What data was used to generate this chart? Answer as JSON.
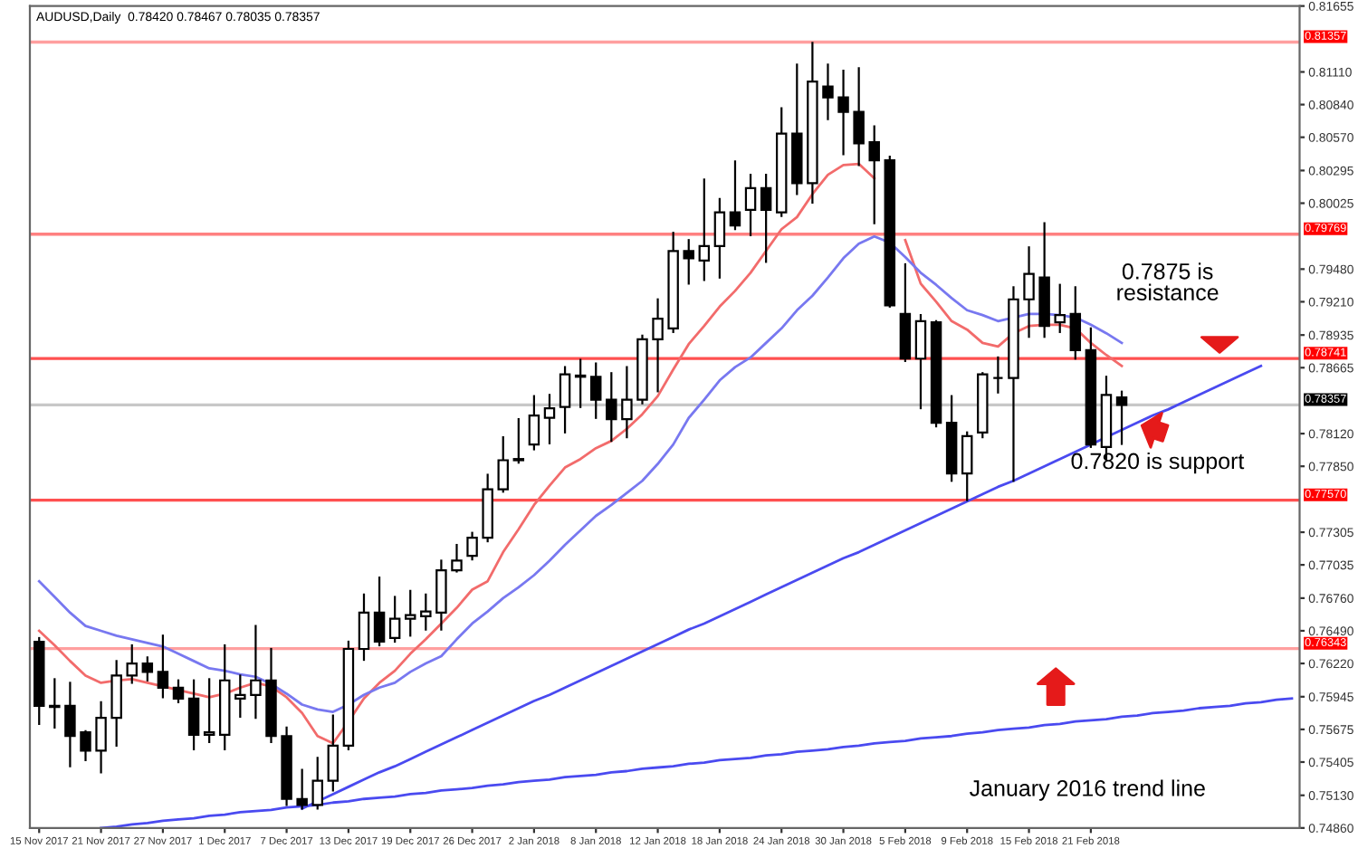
{
  "chart_data": {
    "type": "candlestick",
    "title": "AUDUSD,Daily  0.78420 0.78467 0.78035 0.78357",
    "categories": [
      "15 Nov 2017",
      null,
      null,
      null,
      "21 Nov 2017",
      null,
      null,
      null,
      "27 Nov 2017",
      null,
      null,
      null,
      "1 Dec 2017",
      null,
      null,
      null,
      "7 Dec 2017",
      null,
      null,
      null,
      "13 Dec 2017",
      null,
      null,
      null,
      "19 Dec 2017",
      null,
      null,
      null,
      "26 Dec 2017",
      null,
      null,
      null,
      "2 Jan 2018",
      null,
      null,
      null,
      "8 Jan 2018",
      null,
      null,
      null,
      "12 Jan 2018",
      null,
      null,
      null,
      "18 Jan 2018",
      null,
      null,
      null,
      "24 Jan 2018",
      null,
      null,
      null,
      "30 Jan 2018",
      null,
      null,
      null,
      "5 Feb 2018",
      null,
      null,
      null,
      "9 Feb 2018",
      null,
      null,
      null,
      "15 Feb 2018",
      null,
      null,
      null,
      "21 Feb 2018",
      null,
      null,
      null,
      null,
      null,
      null,
      null,
      null,
      null,
      null,
      null,
      null,
      null
    ],
    "color": "#000000",
    "ohlc": [
      [
        0.764,
        0.7643,
        0.7572,
        0.7587
      ],
      [
        0.7587,
        0.7609,
        0.7569,
        0.7586
      ],
      [
        0.7587,
        0.7606,
        0.7537,
        0.7562
      ],
      [
        0.7565,
        0.7566,
        0.7542,
        0.755
      ],
      [
        0.755,
        0.759,
        0.7532,
        0.7577
      ],
      [
        0.7577,
        0.7624,
        0.7554,
        0.7612
      ],
      [
        0.7612,
        0.7637,
        0.7606,
        0.7622
      ],
      [
        0.7622,
        0.7627,
        0.7608,
        0.7615
      ],
      [
        0.7615,
        0.7645,
        0.7594,
        0.7602
      ],
      [
        0.7602,
        0.7608,
        0.759,
        0.7593
      ],
      [
        0.7593,
        0.7608,
        0.7551,
        0.7563
      ],
      [
        0.7563,
        0.7609,
        0.7557,
        0.7565
      ],
      [
        0.7563,
        0.7637,
        0.7551,
        0.7608
      ],
      [
        0.7593,
        0.7612,
        0.7578,
        0.7596
      ],
      [
        0.7596,
        0.7653,
        0.7577,
        0.7608
      ],
      [
        0.7608,
        0.7634,
        0.7557,
        0.7562
      ],
      [
        0.7562,
        0.7569,
        0.7505,
        0.751
      ],
      [
        0.751,
        0.7534,
        0.7502,
        0.7505
      ],
      [
        0.7505,
        0.7544,
        0.7502,
        0.7525
      ],
      [
        0.7525,
        0.7579,
        0.7517,
        0.7554
      ],
      [
        0.7554,
        0.764,
        0.7551,
        0.7634
      ],
      [
        0.7634,
        0.7679,
        0.7625,
        0.7664
      ],
      [
        0.7664,
        0.7693,
        0.7637,
        0.764
      ],
      [
        0.7643,
        0.7677,
        0.764,
        0.7659
      ],
      [
        0.7659,
        0.7682,
        0.7645,
        0.7662
      ],
      [
        0.7661,
        0.7679,
        0.765,
        0.7665
      ],
      [
        0.7664,
        0.7707,
        0.765,
        0.7699
      ],
      [
        0.7699,
        0.772,
        0.7698,
        0.7707
      ],
      [
        0.7711,
        0.773,
        0.7708,
        0.7726
      ],
      [
        0.7726,
        0.7778,
        0.7723,
        0.7766
      ],
      [
        0.7766,
        0.7809,
        0.7764,
        0.779
      ],
      [
        0.779,
        0.7824,
        0.7788,
        0.7791
      ],
      [
        0.7803,
        0.7843,
        0.7799,
        0.7827
      ],
      [
        0.7825,
        0.7844,
        0.7804,
        0.7833
      ],
      [
        0.7834,
        0.7867,
        0.7813,
        0.7861
      ],
      [
        0.786,
        0.7873,
        0.7834,
        0.7859
      ],
      [
        0.7859,
        0.787,
        0.7825,
        0.784
      ],
      [
        0.784,
        0.7862,
        0.7806,
        0.7824
      ],
      [
        0.7824,
        0.7867,
        0.7809,
        0.784
      ],
      [
        0.784,
        0.7893,
        0.7837,
        0.789
      ],
      [
        0.789,
        0.7923,
        0.7847,
        0.7907
      ],
      [
        0.7899,
        0.7978,
        0.7896,
        0.7963
      ],
      [
        0.7963,
        0.7972,
        0.7936,
        0.7957
      ],
      [
        0.7955,
        0.8022,
        0.7939,
        0.7967
      ],
      [
        0.7967,
        0.8006,
        0.7941,
        0.7995
      ],
      [
        0.7995,
        0.8037,
        0.7981,
        0.7984
      ],
      [
        0.7997,
        0.8026,
        0.7976,
        0.8015
      ],
      [
        0.8015,
        0.8026,
        0.7954,
        0.7997
      ],
      [
        0.7995,
        0.8081,
        0.7992,
        0.806
      ],
      [
        0.806,
        0.8117,
        0.801,
        0.8019
      ],
      [
        0.8019,
        0.8135,
        0.8003,
        0.8103
      ],
      [
        0.8099,
        0.8117,
        0.8072,
        0.809
      ],
      [
        0.809,
        0.8112,
        0.8043,
        0.8078
      ],
      [
        0.8078,
        0.8114,
        0.8034,
        0.8052
      ],
      [
        0.8053,
        0.8066,
        0.7986,
        0.8038
      ],
      [
        0.8038,
        0.8041,
        0.7917,
        0.7918
      ],
      [
        0.7911,
        0.7952,
        0.7872,
        0.7874
      ],
      [
        0.7874,
        0.791,
        0.7833,
        0.7905
      ],
      [
        0.7904,
        0.7905,
        0.7818,
        0.7821
      ],
      [
        0.7821,
        0.7843,
        0.7773,
        0.7779
      ],
      [
        0.7779,
        0.7813,
        0.7757,
        0.781
      ],
      [
        0.7813,
        0.7862,
        0.7809,
        0.7861
      ],
      [
        0.7858,
        0.7875,
        0.7846,
        0.7858
      ],
      [
        0.7858,
        0.7933,
        0.7773,
        0.7923
      ],
      [
        0.7923,
        0.7966,
        0.7892,
        0.7944
      ],
      [
        0.7941,
        0.7986,
        0.7892,
        0.7901
      ],
      [
        0.7904,
        0.7935,
        0.7896,
        0.791
      ],
      [
        0.7911,
        0.7933,
        0.7874,
        0.7881
      ],
      [
        0.7881,
        0.7899,
        0.7801,
        0.7803
      ],
      [
        0.7801,
        0.7859,
        0.7791,
        0.7844
      ],
      [
        0.7842,
        0.78467,
        0.78035,
        0.78357
      ],
      null,
      null,
      null,
      null,
      null,
      null,
      null,
      null,
      null,
      null,
      null
    ],
    "series": [
      {
        "type": "line",
        "color": "#f26b6b",
        "values": [
          0.7649,
          0.7637,
          0.7624,
          0.7612,
          0.7606,
          0.7608,
          0.7609,
          0.7606,
          0.7603,
          0.76,
          0.7597,
          0.7594,
          0.7597,
          0.7602,
          0.7606,
          0.7603,
          0.7594,
          0.7581,
          0.7562,
          0.7556,
          0.7574,
          0.7593,
          0.7606,
          0.7616,
          0.763,
          0.7642,
          0.7655,
          0.7668,
          0.7683,
          0.769,
          0.7714,
          0.7733,
          0.7753,
          0.7769,
          0.7784,
          0.7791,
          0.78,
          0.7806,
          0.7816,
          0.7828,
          0.7843,
          0.7865,
          0.7886,
          0.7901,
          0.7917,
          0.793,
          0.7945,
          0.7963,
          0.7981,
          0.7991,
          0.801,
          0.8026,
          0.8034,
          0.8035,
          0.8023,
          null,
          0.7972,
          0.7936,
          0.7921,
          0.7905,
          0.7898,
          0.7887,
          0.7884,
          0.7895,
          0.7901,
          0.7902,
          0.7902,
          0.7899,
          0.7887,
          0.7877,
          0.7868,
          null,
          null,
          null,
          null,
          null,
          null,
          null,
          null,
          null,
          null,
          null
        ]
      },
      {
        "type": "line",
        "color": "#7878f0",
        "values": [
          0.769,
          0.7677,
          0.7664,
          0.7653,
          0.7649,
          0.7645,
          0.7642,
          0.7639,
          0.7636,
          0.763,
          0.7624,
          0.7618,
          0.7616,
          0.7613,
          0.7611,
          0.7605,
          0.7597,
          0.7588,
          0.7584,
          0.7582,
          0.7588,
          0.7596,
          0.7602,
          0.7606,
          0.7615,
          0.7622,
          0.7628,
          0.7642,
          0.7655,
          0.7665,
          0.7676,
          0.7685,
          0.7695,
          0.7707,
          0.772,
          0.7732,
          0.7744,
          0.7753,
          0.7763,
          0.7773,
          0.7787,
          0.7803,
          0.7825,
          0.784,
          0.7856,
          0.7867,
          0.7875,
          0.7887,
          0.7899,
          0.7914,
          0.7926,
          0.7941,
          0.7957,
          0.7969,
          0.7975,
          0.797,
          0.7958,
          0.7945,
          0.7935,
          0.7924,
          0.7914,
          0.791,
          0.7905,
          0.7908,
          0.7911,
          0.7911,
          0.791,
          0.7908,
          0.7902,
          0.7895,
          0.7887,
          null,
          null,
          null,
          null,
          null,
          null,
          null,
          null,
          null,
          null,
          null
        ]
      },
      {
        "type": "line",
        "color": "#4a4af0",
        "values": [
          null,
          null,
          null,
          null,
          null,
          null,
          null,
          null,
          null,
          null,
          null,
          null,
          null,
          null,
          null,
          null,
          null,
          0.7502,
          0.7508,
          0.7514,
          0.752,
          0.7526,
          0.7532,
          0.7537,
          0.7543,
          0.7549,
          0.7555,
          0.7561,
          0.7567,
          0.7573,
          0.7579,
          0.7585,
          0.7591,
          0.7596,
          0.7602,
          0.7608,
          0.7614,
          0.762,
          0.7626,
          0.7632,
          0.7638,
          0.7644,
          0.765,
          0.7655,
          0.7661,
          0.7667,
          0.7673,
          0.7679,
          0.7685,
          0.7691,
          0.7697,
          0.7703,
          0.7709,
          0.7714,
          0.772,
          0.7726,
          0.7732,
          0.7738,
          0.7744,
          0.775,
          0.7756,
          0.7762,
          0.7768,
          0.7773,
          0.7779,
          0.7785,
          0.7791,
          0.7797,
          0.7803,
          0.7809,
          0.7815,
          0.7821,
          0.7827,
          0.7832,
          0.7838,
          0.7844,
          0.785,
          0.7856,
          0.7862,
          0.7868,
          null,
          null
        ]
      },
      {
        "type": "line",
        "color": "#4a4af0",
        "values": [
          null,
          null,
          null,
          null,
          0.7486,
          0.7487,
          0.7489,
          0.749,
          0.7492,
          0.7493,
          0.7494,
          0.7496,
          0.7497,
          0.7499,
          0.75,
          0.7501,
          0.7503,
          0.7504,
          0.7505,
          0.7507,
          0.7508,
          0.751,
          0.7511,
          0.7512,
          0.7514,
          0.7515,
          0.7517,
          0.7518,
          0.7519,
          0.7521,
          0.7522,
          0.7524,
          0.7525,
          0.7526,
          0.7528,
          0.7529,
          0.753,
          0.7532,
          0.7533,
          0.7535,
          0.7536,
          0.7537,
          0.7539,
          0.754,
          0.7542,
          0.7543,
          0.7544,
          0.7546,
          0.7547,
          0.7549,
          0.755,
          0.7551,
          0.7553,
          0.7554,
          0.7556,
          0.7557,
          0.7558,
          0.756,
          0.7561,
          0.7562,
          0.7564,
          0.7565,
          0.7567,
          0.7568,
          0.7569,
          0.7571,
          0.7572,
          0.7574,
          0.7575,
          0.7576,
          0.7578,
          0.7579,
          0.7581,
          0.7582,
          0.7583,
          0.7585,
          0.7586,
          0.7587,
          0.7589,
          0.759,
          0.7592,
          0.7593
        ]
      }
    ],
    "ylim": [
      0.7486,
      0.81655
    ],
    "yticks": [
      {
        "value": 0.81655,
        "label": "0.81655"
      },
      {
        "value": 0.8111,
        "label": "0.81110"
      },
      {
        "value": 0.8084,
        "label": "0.80840"
      },
      {
        "value": 0.8057,
        "label": "0.80570"
      },
      {
        "value": 0.80295,
        "label": "0.80295"
      },
      {
        "value": 0.80025,
        "label": "0.80025"
      },
      {
        "value": 0.7948,
        "label": "0.79480"
      },
      {
        "value": 0.7921,
        "label": "0.79210"
      },
      {
        "value": 0.78935,
        "label": "0.78935"
      },
      {
        "value": 0.78665,
        "label": "0.78665"
      },
      {
        "value": 0.7812,
        "label": "0.78120"
      },
      {
        "value": 0.7785,
        "label": "0.77850"
      },
      {
        "value": 0.77305,
        "label": "0.77305"
      },
      {
        "value": 0.77035,
        "label": "0.77035"
      },
      {
        "value": 0.7676,
        "label": "0.76760"
      },
      {
        "value": 0.7649,
        "label": "0.76490"
      },
      {
        "value": 0.7622,
        "label": "0.76220"
      },
      {
        "value": 0.75945,
        "label": "0.75945"
      },
      {
        "value": 0.75675,
        "label": "0.75675"
      },
      {
        "value": 0.75405,
        "label": "0.75405"
      },
      {
        "value": 0.7513,
        "label": "0.75130"
      },
      {
        "value": 0.7486,
        "label": "0.74860"
      }
    ],
    "ref_lines": [
      {
        "axis": "y",
        "value": 0.81357,
        "label": "0.81357",
        "color": "#ff9f9f"
      },
      {
        "axis": "y",
        "value": 0.79769,
        "label": "0.79769",
        "color": "#ff8080"
      },
      {
        "axis": "y",
        "value": 0.78741,
        "label": "0.78741",
        "color": "#ff5050"
      },
      {
        "axis": "y",
        "value": 0.78357,
        "label": "0.78357",
        "color": "#c8c8c8"
      },
      {
        "axis": "y",
        "value": 0.7757,
        "label": "0.77570",
        "color": "#ff5050"
      },
      {
        "axis": "y",
        "value": 0.76343,
        "label": "0.76343",
        "color": "#ff9f9f"
      }
    ],
    "annotations": [
      {
        "text": "0.7875 is\nresistance",
        "y": 0.7875
      },
      {
        "text": "0.7820 is support",
        "y": 0.782
      },
      "January 2016 trend line"
    ]
  }
}
